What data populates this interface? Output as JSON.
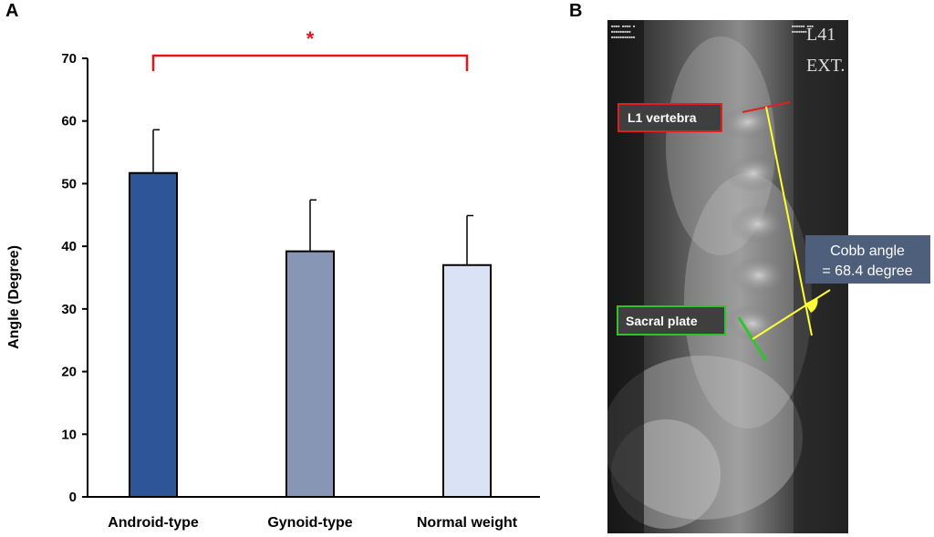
{
  "panels": {
    "a_label": "A",
    "b_label": "B"
  },
  "chart_data": {
    "type": "bar",
    "title": "",
    "xlabel": "",
    "ylabel": "Angle (Degree)",
    "ylim": [
      0,
      70
    ],
    "yticks": [
      "0",
      "10",
      "20",
      "30",
      "40",
      "50",
      "60",
      "70"
    ],
    "categories": [
      "Android-type",
      "Gynoid-type",
      "Normal weight"
    ],
    "values": [
      51.7,
      39.2,
      37.0
    ],
    "errors": [
      6.9,
      8.2,
      7.9
    ],
    "bar_colors": [
      "#2e5597",
      "#8796b4",
      "#dae3f5"
    ],
    "significance": {
      "from": "Android-type",
      "to": "Normal weight",
      "label": "*",
      "color": "#e8141b"
    },
    "grid": false
  },
  "xray": {
    "corner_text_1": "L41",
    "corner_text_2": "EXT.",
    "l1_label": "L1 vertebra",
    "sacral_label": "Sacral plate",
    "cobb_line1": "Cobb angle",
    "cobb_line2": "= 68.4 degree",
    "colors": {
      "l1": "#e02020",
      "sacral": "#2fc42f",
      "cobb": "#ffff33",
      "callout_bg": "#4d5f7a"
    }
  }
}
